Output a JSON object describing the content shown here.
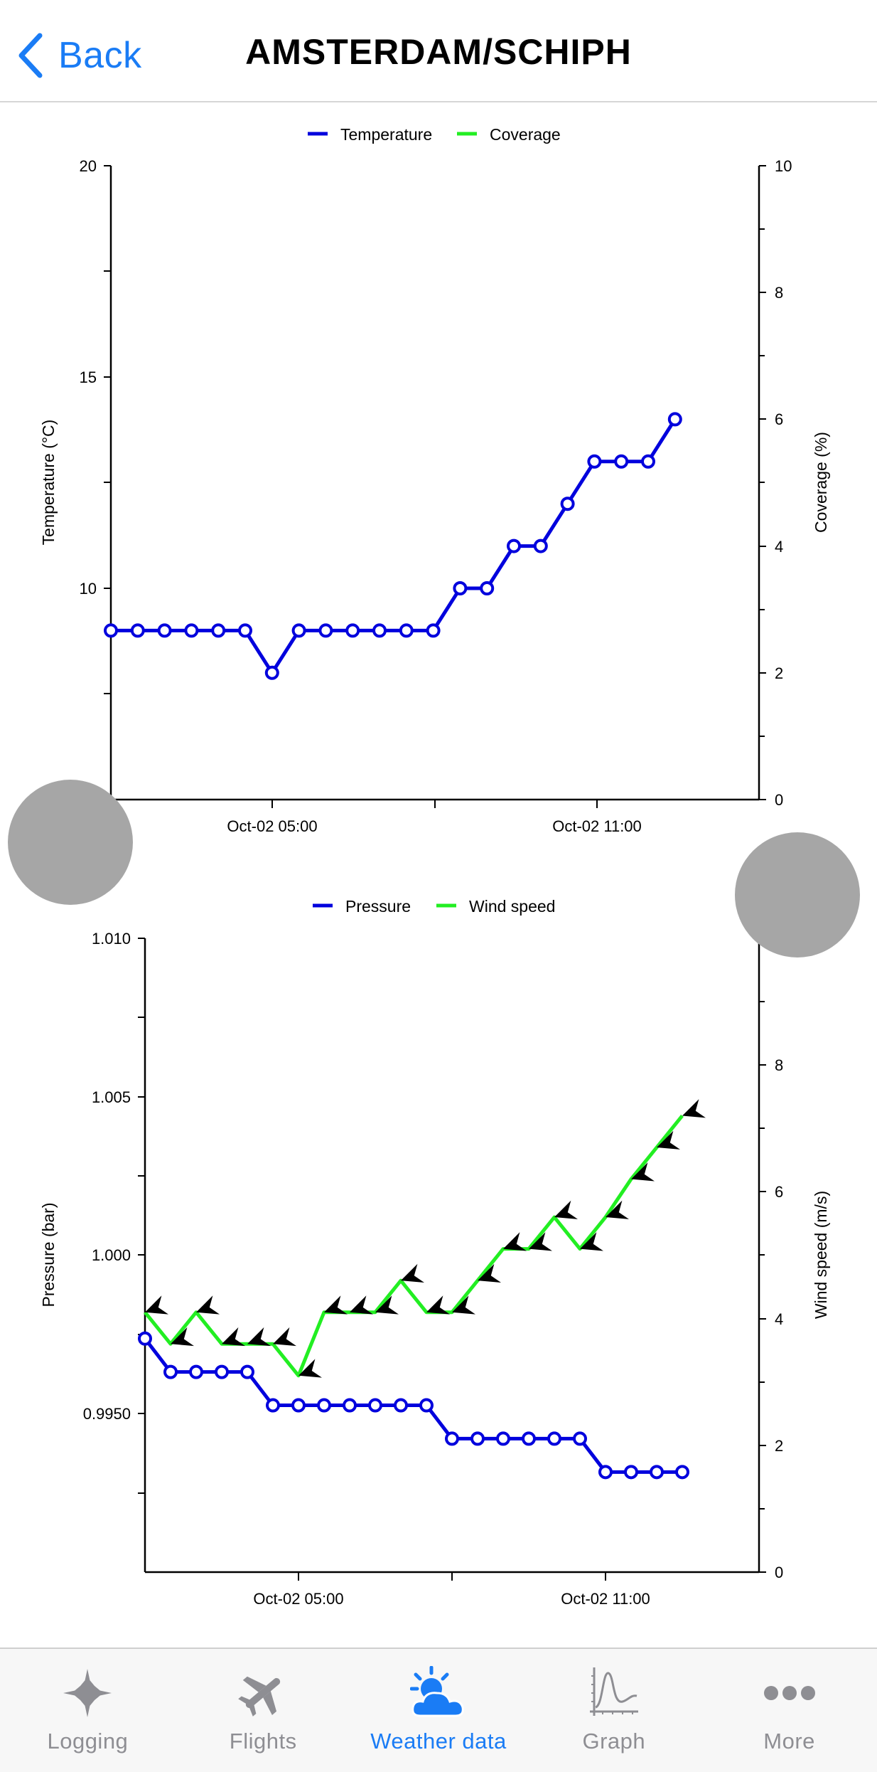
{
  "nav": {
    "back_label": "Back",
    "title": "AMSTERDAM/SCHIPH"
  },
  "charts": [
    {
      "legend": [
        {
          "label": "Temperature",
          "color": "#0000dd"
        },
        {
          "label": "Coverage",
          "color": "#22ee22"
        }
      ],
      "left_axis_label": "Temperature (°C)",
      "right_axis_label": "Coverage (%)",
      "left_ticks": [
        "20",
        "15",
        "10"
      ],
      "right_ticks": [
        "10",
        "8",
        "6",
        "4",
        "2",
        "0"
      ],
      "x_ticks": [
        "Oct-02 05:00",
        "Oct-02 11:00"
      ]
    },
    {
      "legend": [
        {
          "label": "Pressure",
          "color": "#0000dd"
        },
        {
          "label": "Wind speed",
          "color": "#22ee22"
        }
      ],
      "left_axis_label": "Pressure (bar)",
      "right_axis_label": "Wind speed (m/s)",
      "left_ticks": [
        "1.010",
        "1.005",
        "1.000",
        "0.9950"
      ],
      "right_ticks": [
        "8",
        "6",
        "4",
        "2",
        "0"
      ],
      "x_ticks": [
        "Oct-02 05:00",
        "Oct-02 11:00"
      ]
    }
  ],
  "chart_data": [
    {
      "type": "line",
      "x_axis": {
        "start": "Oct-02 02:00",
        "step_minutes": 30,
        "tick_labels": [
          "Oct-02 05:00",
          "Oct-02 11:00"
        ]
      },
      "ylabel": "Temperature (°C)",
      "y2label": "Coverage (%)",
      "ylim": [
        5,
        20
      ],
      "y2lim": [
        0,
        10
      ],
      "grid": false,
      "legend_position": "top",
      "series": [
        {
          "name": "Temperature",
          "axis": "left",
          "color": "#0000dd",
          "x": [
            "02:00",
            "02:30",
            "03:00",
            "03:30",
            "04:00",
            "04:30",
            "05:00",
            "05:30",
            "06:00",
            "06:30",
            "07:00",
            "07:30",
            "08:00",
            "08:30",
            "09:00",
            "09:30",
            "10:00",
            "10:30",
            "11:00",
            "11:30",
            "12:00",
            "12:30"
          ],
          "values": [
            9,
            9,
            9,
            9,
            9,
            9,
            8,
            9,
            9,
            9,
            9,
            9,
            9,
            10,
            10,
            11,
            11,
            12,
            13,
            13,
            13,
            14
          ]
        },
        {
          "name": "Coverage",
          "axis": "right",
          "color": "#22ee22",
          "values": []
        }
      ]
    },
    {
      "type": "line",
      "x_axis": {
        "start": "Oct-02 02:00",
        "step_minutes": 30,
        "tick_labels": [
          "Oct-02 05:00",
          "Oct-02 11:00"
        ]
      },
      "ylabel": "Pressure (bar)",
      "y2label": "Wind speed (m/s)",
      "ylim": [
        0.991,
        1.01
      ],
      "y2lim": [
        0,
        10
      ],
      "grid": false,
      "legend_position": "top",
      "series": [
        {
          "name": "Pressure",
          "axis": "left",
          "color": "#0000dd",
          "x": [
            "02:00",
            "02:30",
            "03:00",
            "03:30",
            "04:00",
            "04:30",
            "05:00",
            "05:30",
            "06:00",
            "06:30",
            "07:00",
            "07:30",
            "08:00",
            "08:30",
            "09:00",
            "09:30",
            "10:00",
            "10:30",
            "11:00",
            "11:30",
            "12:00",
            "12:30"
          ],
          "values": [
            0.998,
            0.997,
            0.997,
            0.997,
            0.997,
            0.996,
            0.996,
            0.996,
            0.996,
            0.996,
            0.996,
            0.996,
            0.995,
            0.995,
            0.995,
            0.995,
            0.995,
            0.995,
            0.994,
            0.994,
            0.994,
            0.994
          ]
        },
        {
          "name": "Wind speed",
          "axis": "right",
          "color": "#22ee22",
          "x": [
            "02:00",
            "02:30",
            "03:00",
            "03:30",
            "04:00",
            "04:30",
            "05:00",
            "05:30",
            "06:00",
            "06:30",
            "07:00",
            "07:30",
            "08:00",
            "08:30",
            "09:00",
            "09:30",
            "10:00",
            "10:30",
            "11:00",
            "11:30",
            "12:00",
            "12:30"
          ],
          "values": [
            4.1,
            3.6,
            4.1,
            3.6,
            3.6,
            3.6,
            3.1,
            4.1,
            4.1,
            4.1,
            4.6,
            4.1,
            4.1,
            4.6,
            5.1,
            5.1,
            5.6,
            5.1,
            5.6,
            6.2,
            6.7,
            7.2
          ]
        }
      ]
    }
  ],
  "tabbar": {
    "active_color": "#1a7cf5",
    "inactive_color": "#8e8e93",
    "items": [
      {
        "label": "Logging",
        "icon": "compass-star-icon",
        "active": false
      },
      {
        "label": "Flights",
        "icon": "airplane-icon",
        "active": false
      },
      {
        "label": "Weather data",
        "icon": "sun-cloud-icon",
        "active": true
      },
      {
        "label": "Graph",
        "icon": "graph-icon",
        "active": false
      },
      {
        "label": "More",
        "icon": "more-icon",
        "active": false
      }
    ]
  }
}
